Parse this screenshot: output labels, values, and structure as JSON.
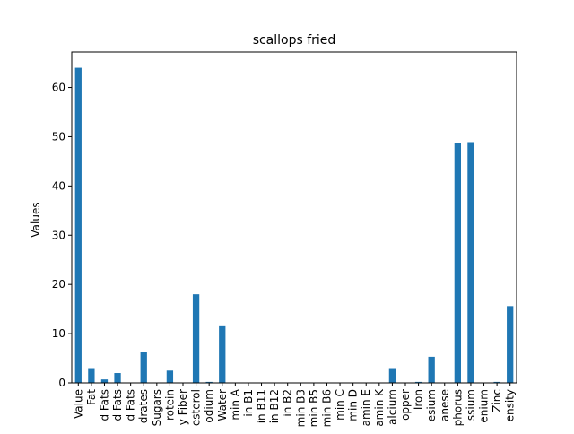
{
  "chart_data": {
    "type": "bar",
    "title": "scallops fried",
    "xlabel": "",
    "ylabel": "Values",
    "categories": [
      "Value",
      "Fat",
      "d Fats",
      "d Fats",
      "d Fats",
      "drates",
      "Sugars",
      "rotein",
      "y Fiber",
      "esterol",
      "odium",
      "Water",
      "min A",
      "in B1",
      "in B11",
      "in B12",
      "in B2",
      "min B3",
      "min B5",
      "min B6",
      "min C",
      "min D",
      "amin E",
      "amin K",
      "alcium",
      "opper",
      "Iron",
      "esium",
      "anese",
      "phorus",
      "ssium",
      "enium",
      "Zinc",
      "ensity"
    ],
    "values": [
      64.0,
      3.0,
      0.7,
      2.0,
      0.0,
      6.3,
      0.0,
      2.5,
      0.0,
      18.0,
      0.2,
      11.5,
      0.0,
      0.0,
      0.0,
      0.0,
      0.0,
      0.0,
      0.0,
      0.0,
      0.0,
      0.0,
      0.0,
      0.0,
      3.0,
      0.0,
      0.2,
      5.3,
      0.0,
      48.7,
      48.9,
      0.0,
      0.2,
      15.6
    ],
    "ylim": [
      0,
      67.2
    ],
    "yticks": [
      0,
      10,
      20,
      30,
      40,
      50,
      60
    ],
    "grid": false,
    "bar_color": "#1f77b4"
  }
}
